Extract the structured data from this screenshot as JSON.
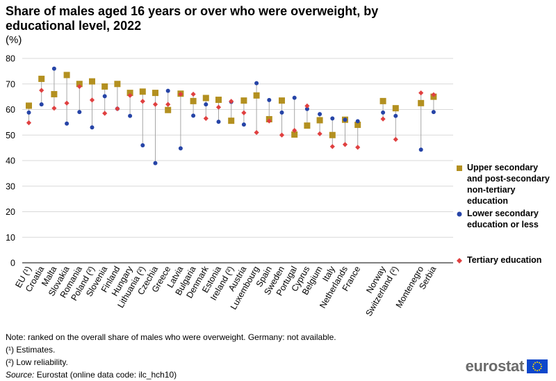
{
  "title": "Share of males aged 16 years or over who were overweight, by educational level, 2022",
  "unit_label": "(%)",
  "chart_data": {
    "type": "scatter",
    "title": "Share of males aged 16 years or over who were overweight, by educational level, 2022",
    "ylabel": "(%)",
    "ylim": [
      0,
      80
    ],
    "yticks": [
      0,
      10,
      20,
      30,
      40,
      50,
      60,
      70,
      80
    ],
    "grid": true,
    "legend_position": "right",
    "categories": [
      "EU (¹)",
      "Croatia",
      "Malta",
      "Slovakia",
      "Romania",
      "Poland (²)",
      "Slovenia",
      "Finland",
      "Hungary",
      "Lithuania (²)",
      "Czechia",
      "Greece",
      "Latvia",
      "Bulgaria",
      "Denmark",
      "Estonia",
      "Ireland (²)",
      "Austria",
      "Luxembourg",
      "Spain",
      "Sweden",
      "Portugal",
      "Cyprus",
      "Belgium",
      "Italy",
      "Netherlands",
      "France",
      "",
      "Norway",
      "Switzerland (²)",
      "",
      "Montenegro",
      "Serbia"
    ],
    "category_gaps": [
      1,
      28,
      31
    ],
    "series": [
      {
        "name": "Upper secondary and post-secondary non-tertiary education",
        "marker": "square",
        "color": "#B39020",
        "values": [
          61.5,
          72.0,
          66.0,
          73.5,
          70.0,
          71.0,
          69.0,
          70.0,
          66.5,
          67.0,
          66.5,
          59.8,
          66.2,
          63.3,
          64.5,
          63.8,
          55.6,
          63.5,
          65.5,
          56.2,
          63.5,
          50.2,
          53.7,
          55.8,
          50.0,
          56.0,
          54.0,
          null,
          63.3,
          60.5,
          null,
          62.5,
          65.0
        ]
      },
      {
        "name": "Lower secondary education or less",
        "marker": "circle",
        "color": "#2644A7",
        "values": [
          58.8,
          62.0,
          76.0,
          54.5,
          59.0,
          53.0,
          65.2,
          60.3,
          57.5,
          46.0,
          39.0,
          67.3,
          44.8,
          57.6,
          62.0,
          55.2,
          63.0,
          54.1,
          70.3,
          63.7,
          58.8,
          64.6,
          60.2,
          58.2,
          56.5,
          56.0,
          55.4,
          null,
          58.8,
          57.5,
          null,
          44.3,
          59.0
        ]
      },
      {
        "name": "Tertiary education",
        "marker": "diamond",
        "color": "#E04040",
        "values": [
          54.8,
          67.5,
          60.5,
          62.5,
          69.0,
          63.7,
          58.5,
          60.3,
          65.5,
          63.2,
          62.0,
          62.0,
          66.0,
          66.0,
          56.5,
          60.9,
          63.2,
          58.7,
          51.0,
          55.5,
          50.0,
          51.8,
          61.4,
          50.5,
          45.5,
          46.3,
          45.2,
          null,
          56.3,
          48.3,
          null,
          66.5,
          65.8
        ]
      }
    ]
  },
  "legend": [
    {
      "label": "Upper secondary and post-secondary non-tertiary education",
      "marker": "square",
      "color": "#B39020"
    },
    {
      "label": "Lower secondary education or less",
      "marker": "circle",
      "color": "#2644A7"
    },
    {
      "label": "Tertiary education",
      "marker": "diamond",
      "color": "#E04040"
    }
  ],
  "notes": {
    "note": "Note: ranked on the overall share of males who were overweight. Germany: not available.",
    "footnote1": "(¹) Estimates.",
    "footnote2": "(²) Low reliability.",
    "source_label": "Source:",
    "source_text": " Eurostat (online data code: ilc_hch10)"
  },
  "logo_text": "eurostat",
  "colors": {
    "grid": "#d9d9d9",
    "axis": "#000000",
    "connector": "#a6a6a6",
    "eu_blue": "#0E47CB",
    "eu_star": "#FFDD00"
  }
}
